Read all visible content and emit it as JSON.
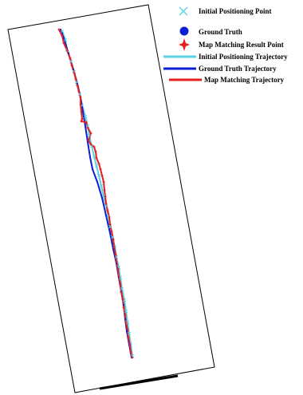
{
  "chart_data": {
    "type": "scatter",
    "title": "",
    "xlabel": "",
    "ylabel": "",
    "grid": false,
    "legend_position": "top-right",
    "colors": {
      "initial": "#5ad2e6",
      "ground_truth": "#0a1ed2",
      "map_matching": "#e61e1e",
      "frame": "#000000"
    },
    "legend": [
      {
        "key": "initial_point",
        "label": "Initial Positioning Point",
        "marker": "cross-icon",
        "color": "#5ad2e6"
      },
      {
        "key": "ground_truth_point",
        "label": "Ground Truth",
        "marker": "filled-circle-icon",
        "color": "#0a1ed2"
      },
      {
        "key": "mm_point",
        "label": "Map Matching Result Point",
        "marker": "four-point-star-icon",
        "color": "#e61e1e"
      },
      {
        "key": "initial_traj",
        "label": "Initial Positioning Trajectory",
        "marker": "line-icon",
        "color": "#5ad2e6"
      },
      {
        "key": "ground_truth_traj",
        "label": "Ground Truth Trajectory",
        "marker": "line-icon",
        "color": "#0a1ed2"
      },
      {
        "key": "mm_traj",
        "label": "Map Matching Trajectory",
        "marker": "line-icon",
        "color": "#e61e1e"
      }
    ],
    "series": {
      "ground_truth": [
        [
          76,
          37
        ],
        [
          80,
          48
        ],
        [
          86,
          67
        ],
        [
          92,
          87
        ],
        [
          97,
          105
        ],
        [
          101,
          122
        ],
        [
          104,
          140
        ],
        [
          107,
          158
        ],
        [
          110,
          178
        ],
        [
          113,
          197
        ],
        [
          116,
          212
        ],
        [
          122,
          228
        ],
        [
          128,
          248
        ],
        [
          133,
          270
        ],
        [
          138,
          292
        ],
        [
          142,
          312
        ],
        [
          146,
          330
        ],
        [
          149,
          348
        ],
        [
          152,
          365
        ],
        [
          155,
          382
        ],
        [
          157,
          400
        ],
        [
          159,
          415
        ],
        [
          162,
          432
        ],
        [
          165,
          448
        ]
      ],
      "initial": [
        [
          78,
          39
        ],
        [
          82,
          50
        ],
        [
          84,
          63
        ],
        [
          89,
          77
        ],
        [
          93,
          90
        ],
        [
          96,
          103
        ],
        [
          100,
          118
        ],
        [
          103,
          132
        ],
        [
          107,
          146
        ],
        [
          110,
          158
        ],
        [
          112,
          170
        ],
        [
          115,
          183
        ],
        [
          118,
          196
        ],
        [
          121,
          208
        ],
        [
          124,
          220
        ],
        [
          127,
          233
        ],
        [
          130,
          246
        ],
        [
          133,
          258
        ],
        [
          136,
          271
        ],
        [
          138,
          284
        ],
        [
          141,
          297
        ],
        [
          144,
          309
        ],
        [
          146,
          322
        ],
        [
          149,
          335
        ],
        [
          151,
          348
        ],
        [
          153,
          362
        ],
        [
          156,
          376
        ],
        [
          158,
          390
        ],
        [
          160,
          404
        ],
        [
          162,
          418
        ],
        [
          164,
          432
        ],
        [
          166,
          446
        ]
      ],
      "map_matching": [
        [
          74,
          37
        ],
        [
          78,
          45
        ],
        [
          80,
          54
        ],
        [
          84,
          63
        ],
        [
          88,
          73
        ],
        [
          90,
          82
        ],
        [
          93,
          91
        ],
        [
          95,
          99
        ],
        [
          97,
          107
        ],
        [
          99,
          115
        ],
        [
          101,
          122
        ],
        [
          101,
          131
        ],
        [
          102,
          140
        ],
        [
          103,
          149
        ],
        [
          102,
          152
        ],
        [
          108,
          153
        ],
        [
          110,
          160
        ],
        [
          114,
          167
        ],
        [
          111,
          176
        ],
        [
          114,
          181
        ],
        [
          118,
          184
        ],
        [
          120,
          190
        ],
        [
          121,
          198
        ],
        [
          124,
          205
        ],
        [
          126,
          212
        ],
        [
          128,
          220
        ],
        [
          130,
          228
        ],
        [
          131,
          238
        ],
        [
          132,
          246
        ],
        [
          133,
          255
        ],
        [
          135,
          264
        ],
        [
          137,
          272
        ],
        [
          138,
          281
        ],
        [
          140,
          290
        ],
        [
          142,
          300
        ],
        [
          143,
          309
        ],
        [
          145,
          319
        ],
        [
          146,
          328
        ],
        [
          148,
          337
        ],
        [
          149,
          347
        ],
        [
          151,
          356
        ],
        [
          152,
          366
        ],
        [
          154,
          375
        ],
        [
          155,
          385
        ],
        [
          157,
          394
        ],
        [
          158,
          404
        ],
        [
          160,
          413
        ],
        [
          161,
          423
        ],
        [
          163,
          432
        ],
        [
          164,
          441
        ],
        [
          166,
          448
        ]
      ]
    }
  }
}
